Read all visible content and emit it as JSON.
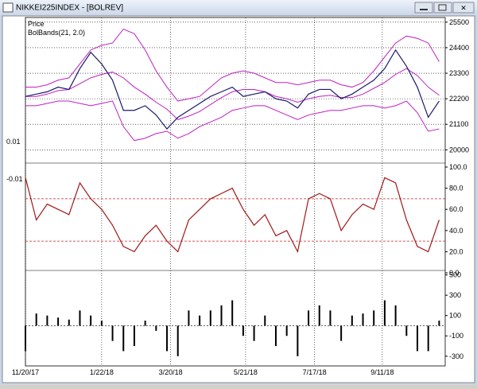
{
  "window_title": "NIKKEI225INDEX - [BOLREV]",
  "left_axis_labels": [
    "0.01",
    "-0.01"
  ],
  "chart_data": [
    {
      "type": "line",
      "series": [
        {
          "name": "Price",
          "color": "#1a1a6e",
          "values": [
            22300,
            22400,
            22500,
            22700,
            22600,
            23500,
            24200,
            23700,
            23000,
            21700,
            21700,
            21900,
            21500,
            20900,
            21400,
            21700,
            22000,
            22300,
            22500,
            22700,
            22300,
            22400,
            22500,
            22200,
            22100,
            21800,
            22400,
            22600,
            22600,
            22200,
            22400,
            22700,
            23000,
            23500,
            24300,
            23600,
            22700,
            21400,
            22100
          ]
        }
      ],
      "bands": {
        "name": "BolBands(21, 2.0)",
        "color": "#c020c0",
        "upper": [
          22700,
          22700,
          22800,
          23000,
          23100,
          23700,
          24300,
          24500,
          24600,
          25200,
          25000,
          24300,
          23400,
          22700,
          22100,
          22200,
          22300,
          22700,
          23100,
          23300,
          23400,
          23300,
          23100,
          22900,
          22900,
          22800,
          22900,
          23000,
          23000,
          22800,
          22700,
          22900,
          23400,
          24000,
          24600,
          24900,
          24800,
          24600,
          23800
        ],
        "middle": [
          22300,
          22300,
          22400,
          22550,
          22600,
          22850,
          23100,
          23250,
          23350,
          23100,
          22700,
          22400,
          22050,
          21750,
          21300,
          21450,
          21650,
          21950,
          22250,
          22500,
          22600,
          22600,
          22500,
          22300,
          22200,
          22050,
          22200,
          22300,
          22350,
          22250,
          22250,
          22400,
          22650,
          22900,
          23250,
          23500,
          23200,
          22700,
          22350
        ],
        "lower": [
          21900,
          21900,
          22000,
          22100,
          22100,
          22000,
          21900,
          22000,
          22100,
          21000,
          20400,
          20500,
          20700,
          20800,
          20500,
          20700,
          21000,
          21200,
          21400,
          21700,
          21800,
          21900,
          21900,
          21700,
          21500,
          21300,
          21500,
          21600,
          21700,
          21700,
          21800,
          21900,
          21900,
          21800,
          21900,
          22100,
          21600,
          20800,
          20900
        ]
      },
      "ylim": [
        19600,
        25700
      ],
      "yticks": [
        20000,
        21100,
        22200,
        23300,
        24400,
        25500
      ],
      "grid": true
    },
    {
      "type": "line",
      "series": [
        {
          "color": "#a01818",
          "values": [
            90,
            50,
            65,
            60,
            55,
            85,
            70,
            60,
            45,
            25,
            20,
            35,
            45,
            30,
            20,
            50,
            60,
            70,
            75,
            80,
            60,
            45,
            55,
            35,
            40,
            20,
            70,
            75,
            70,
            40,
            55,
            65,
            60,
            90,
            85,
            50,
            25,
            20,
            50
          ]
        }
      ],
      "ylim": [
        0,
        100
      ],
      "yticks": [
        {
          "value": 0,
          "label": "0.0"
        },
        {
          "value": 20,
          "label": "20.0"
        },
        {
          "value": 40,
          "label": "40.0"
        },
        {
          "value": 60,
          "label": "60.0"
        },
        {
          "value": 80,
          "label": "80.0"
        },
        {
          "value": 100,
          "label": "100.0"
        }
      ],
      "levels": [
        70,
        30
      ],
      "level_color": "#d02020"
    },
    {
      "type": "bar",
      "series": [
        {
          "color": "#000000",
          "values": [
            -250,
            120,
            100,
            80,
            60,
            150,
            100,
            50,
            -150,
            -250,
            -200,
            50,
            -50,
            -250,
            -300,
            150,
            100,
            150,
            200,
            250,
            -100,
            -150,
            100,
            -200,
            -100,
            -300,
            150,
            200,
            150,
            -150,
            100,
            120,
            150,
            250,
            200,
            -100,
            -250,
            -250,
            50
          ]
        }
      ],
      "ylim": [
        -380,
        520
      ],
      "yticks": [
        -300,
        -100,
        100,
        300,
        500
      ],
      "x": [
        0,
        9,
        18,
        27,
        36,
        45,
        54,
        63,
        72,
        81,
        90,
        99,
        108,
        117,
        126,
        135,
        144,
        153,
        162,
        171,
        180,
        189,
        198,
        207,
        216,
        225,
        234,
        243,
        252,
        261,
        270,
        279,
        288,
        297,
        306,
        315,
        324,
        333,
        342
      ],
      "xlim": [
        0,
        347
      ],
      "xticks": [
        {
          "value": 0,
          "label": "11/20/17"
        },
        {
          "value": 63,
          "label": "1/22/18"
        },
        {
          "value": 120,
          "label": "3/20/18"
        },
        {
          "value": 182,
          "label": "5/21/18"
        },
        {
          "value": 239,
          "label": "7/17/18"
        },
        {
          "value": 295,
          "label": "9/11/18"
        }
      ]
    }
  ]
}
